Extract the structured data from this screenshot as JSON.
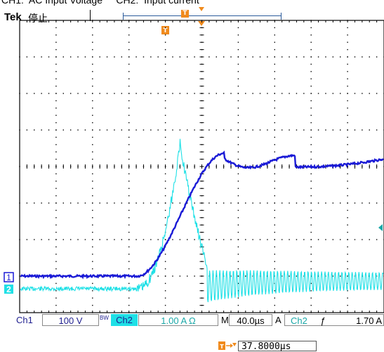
{
  "header": {
    "caption": "CH1:  AC Input Voltage     CH2:  Input current",
    "brand": "Tek",
    "state": "停止",
    "trigger_marker_glyph": "T"
  },
  "channels": {
    "ch1": {
      "marker": "1",
      "color": "#1a1ad6"
    },
    "ch2": {
      "marker": "2",
      "color": "#1ee0e6"
    }
  },
  "graticule": {
    "divisions_x": 10,
    "divisions_y": 8,
    "color": "#000000"
  },
  "status": {
    "ch1_label": "Ch1",
    "ch1_scale": "100 V",
    "bw_label": "BW",
    "ch2_label": "Ch2",
    "ch2_scale": "1.00 A Ω",
    "timebase_prefix": "M",
    "timebase": "40.0µs",
    "trigger_mode": "A",
    "trigger_source": "Ch2",
    "trigger_slope_glyph": "ƒ",
    "trigger_level": "1.70 A"
  },
  "trigger_position": {
    "readout": "37.8000µs"
  },
  "colors": {
    "accent": "#f08a1c",
    "status_text": "#1f1f8f",
    "ch2_highlight": "#1ee0e6"
  }
}
